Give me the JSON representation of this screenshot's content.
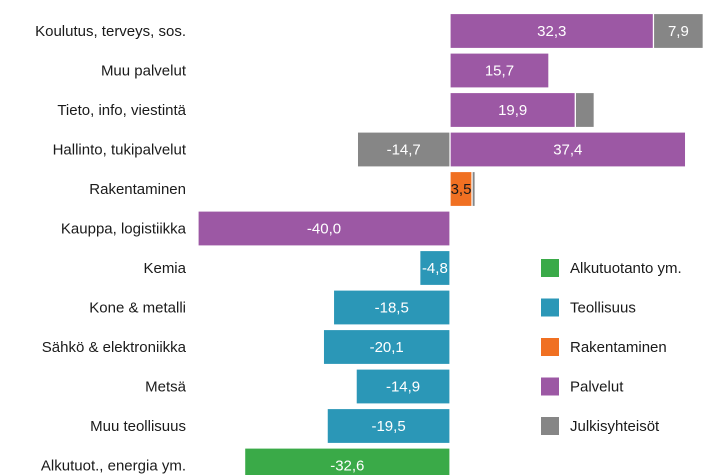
{
  "chart_data": {
    "type": "bar",
    "orientation": "horizontal",
    "stacked": true,
    "title": "",
    "xlabel": "",
    "ylabel": "",
    "xlim": [
      -40,
      40
    ],
    "grid": false,
    "legend_position": "right",
    "categories": [
      "Koulutus, terveys, sos.",
      "Muu palvelut",
      "Tieto, info, viestintä",
      "Hallinto, tukipalvelut",
      "Rakentaminen",
      "Kauppa, logistiikka",
      "Kemia",
      "Kone & metalli",
      "Sähkö & elektroniikka",
      "Metsä",
      "Muu teollisuus",
      "Alkutuot., energia ym."
    ],
    "series": [
      {
        "name": "Alkutuotanto ym.",
        "color": "#3aaa48",
        "values": [
          0,
          0,
          0,
          0,
          0,
          0,
          0,
          0,
          0,
          0,
          0,
          -32.6
        ],
        "labels": [
          "",
          "",
          "",
          "",
          "",
          "",
          "",
          "",
          "",
          "",
          "",
          "-32,6"
        ]
      },
      {
        "name": "Teollisuus",
        "color": "#2b97b7",
        "values": [
          0,
          0,
          0,
          0,
          0,
          0,
          -4.8,
          -18.5,
          -20.1,
          -14.9,
          -19.5,
          0
        ],
        "labels": [
          "",
          "",
          "",
          "",
          "",
          "",
          "-4,8",
          "-18,5",
          "-20,1",
          "-14,9",
          "-19,5",
          ""
        ]
      },
      {
        "name": "Rakentaminen",
        "color": "#f07022",
        "values": [
          0,
          0,
          0,
          0,
          3.5,
          0,
          0,
          0,
          0,
          0,
          0,
          0
        ],
        "labels": [
          "",
          "",
          "",
          "",
          "3,5",
          "",
          "",
          "",
          "",
          "",
          "",
          ""
        ]
      },
      {
        "name": "Palvelut",
        "color": "#9c58a4",
        "values": [
          32.3,
          15.7,
          19.9,
          37.4,
          0,
          -40.0,
          0,
          0,
          0,
          0,
          0,
          0
        ],
        "labels": [
          "32,3",
          "15,7",
          "19,9",
          "37,4",
          "",
          "-40,0",
          "",
          "",
          "",
          "",
          "",
          ""
        ]
      },
      {
        "name": "Julkisyhteisöt",
        "color": "#868686",
        "values": [
          7.9,
          0,
          3.0,
          -14.7,
          0.5,
          0,
          0,
          0,
          0,
          0,
          0,
          0
        ],
        "labels": [
          "7,9",
          "",
          "",
          "-14,7",
          "",
          "",
          "",
          "",
          "",
          "",
          "",
          ""
        ]
      }
    ]
  }
}
